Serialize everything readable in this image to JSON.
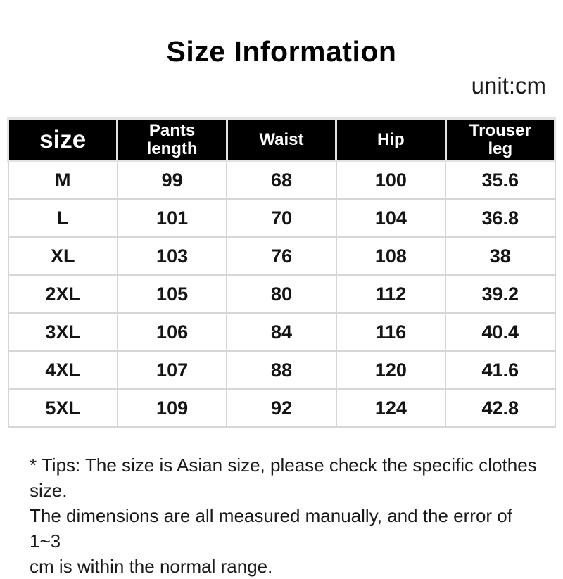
{
  "header": {
    "title": "Size Information",
    "unit": "unit:cm"
  },
  "table": {
    "columns": [
      "size",
      "Pants\nlength",
      "Waist",
      "Hip",
      "Trouser\nleg"
    ],
    "rows": [
      {
        "cells": [
          "M",
          "99",
          "68",
          "100",
          "35.6"
        ]
      },
      {
        "cells": [
          "L",
          "101",
          "70",
          "104",
          "36.8"
        ]
      },
      {
        "cells": [
          "XL",
          "103",
          "76",
          "108",
          "38"
        ]
      },
      {
        "cells": [
          "2XL",
          "105",
          "80",
          "112",
          "39.2"
        ]
      },
      {
        "cells": [
          "3XL",
          "106",
          "84",
          "116",
          "40.4"
        ]
      },
      {
        "cells": [
          "4XL",
          "107",
          "88",
          "120",
          "41.6"
        ]
      },
      {
        "cells": [
          "5XL",
          "109",
          "92",
          "124",
          "42.8"
        ]
      }
    ]
  },
  "footer": {
    "tips": "* Tips: The size is Asian size, please check the specific clothes size.\nThe dimensions are all measured manually, and the error of 1~3\ncm is within the normal range."
  },
  "colors": {
    "header_bg": "#000000",
    "header_text": "#ffffff",
    "body_text": "#141414",
    "border": "#d6d6d6"
  }
}
